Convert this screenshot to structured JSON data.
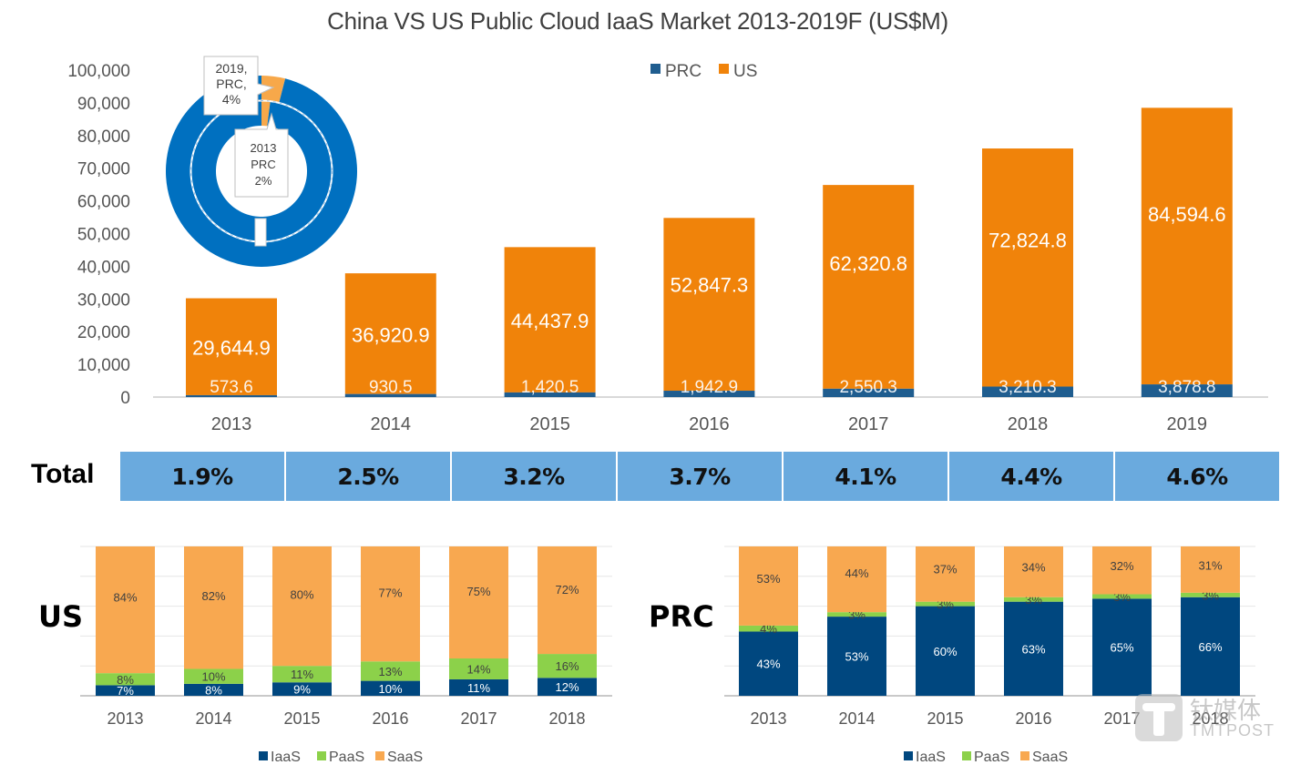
{
  "title": "China VS US Public Cloud IaaS Market 2013-2019F (US$M)",
  "colors": {
    "prc": "#1f5d8f",
    "us": "#f0830a",
    "donut_us": "#0070c0",
    "donut_prc": "#f7a84a",
    "total_cell": "#6aaade",
    "iaas": "#00477f",
    "paas": "#8cd14a",
    "saas": "#f8a850"
  },
  "chart_data": [
    {
      "id": "main",
      "type": "bar",
      "stacked": true,
      "title": "China VS US Public Cloud IaaS Market 2013-2019F (US$M)",
      "categories": [
        "2013",
        "2014",
        "2015",
        "2016",
        "2017",
        "2018",
        "2019"
      ],
      "series": [
        {
          "name": "PRC",
          "values": [
            573.6,
            930.5,
            1420.5,
            1942.9,
            2550.3,
            3210.3,
            3878.8
          ],
          "labels": [
            "573.6",
            "930.5",
            "1,420.5",
            "1,942.9",
            "2,550.3",
            "3,210.3",
            "3,878.8"
          ]
        },
        {
          "name": "US",
          "values": [
            29644.9,
            36920.9,
            44437.9,
            52847.3,
            62320.8,
            72824.8,
            84594.6
          ],
          "labels": [
            "29,644.9",
            "36,920.9",
            "44,437.9",
            "52,847.3",
            "62,320.8",
            "72,824.8",
            "84,594.6"
          ]
        }
      ],
      "yticks": [
        "0",
        "10,000",
        "20,000",
        "30,000",
        "40,000",
        "50,000",
        "60,000",
        "70,000",
        "80,000",
        "90,000",
        "100,000"
      ],
      "ylim": [
        0,
        100000
      ],
      "legend": [
        "PRC",
        "US"
      ],
      "legend_position": "top-center",
      "xlabel": "",
      "ylabel": "",
      "grid": false
    },
    {
      "id": "donut",
      "type": "pie",
      "style": "donut",
      "rings": [
        {
          "name": "2013",
          "slices": [
            {
              "label": "PRC",
              "value": 2
            },
            {
              "label": "US",
              "value": 98
            }
          ]
        },
        {
          "name": "2019",
          "slices": [
            {
              "label": "PRC",
              "value": 4
            },
            {
              "label": "US",
              "value": 96
            }
          ]
        }
      ],
      "callouts": [
        {
          "lines": [
            "2019,",
            "PRC,",
            "4%"
          ]
        },
        {
          "lines": [
            "2013",
            "PRC",
            "2%"
          ]
        }
      ]
    },
    {
      "id": "total",
      "type": "table",
      "row_label": "Total",
      "categories": [
        "2013",
        "2014",
        "2015",
        "2016",
        "2017",
        "2018",
        "2019"
      ],
      "values": [
        "1.9%",
        "2.5%",
        "3.2%",
        "3.7%",
        "4.1%",
        "4.4%",
        "4.6%"
      ]
    },
    {
      "id": "us-mix",
      "type": "bar",
      "stacked": true,
      "side_label": "US",
      "categories": [
        "2013",
        "2014",
        "2015",
        "2016",
        "2017",
        "2018"
      ],
      "series": [
        {
          "name": "IaaS",
          "values": [
            7,
            8,
            9,
            10,
            11,
            12
          ]
        },
        {
          "name": "PaaS",
          "values": [
            8,
            10,
            11,
            13,
            14,
            16
          ]
        },
        {
          "name": "SaaS",
          "values": [
            84,
            82,
            80,
            77,
            75,
            72
          ]
        }
      ],
      "ylim": [
        0,
        100
      ],
      "legend": [
        "IaaS",
        "PaaS",
        "SaaS"
      ],
      "legend_position": "bottom",
      "grid": true
    },
    {
      "id": "prc-mix",
      "type": "bar",
      "stacked": true,
      "side_label": "PRC",
      "categories": [
        "2013",
        "2014",
        "2015",
        "2016",
        "2017",
        "2018"
      ],
      "series": [
        {
          "name": "IaaS",
          "values": [
            43,
            53,
            60,
            63,
            65,
            66
          ]
        },
        {
          "name": "PaaS",
          "values": [
            4,
            3,
            3,
            3,
            3,
            3
          ]
        },
        {
          "name": "SaaS",
          "values": [
            53,
            44,
            37,
            34,
            32,
            31
          ]
        }
      ],
      "ylim": [
        0,
        100
      ],
      "legend": [
        "IaaS",
        "PaaS",
        "SaaS"
      ],
      "legend_position": "bottom",
      "grid": true
    }
  ],
  "watermark": {
    "chinese": "钛媒体",
    "english": "TMTPOST"
  }
}
